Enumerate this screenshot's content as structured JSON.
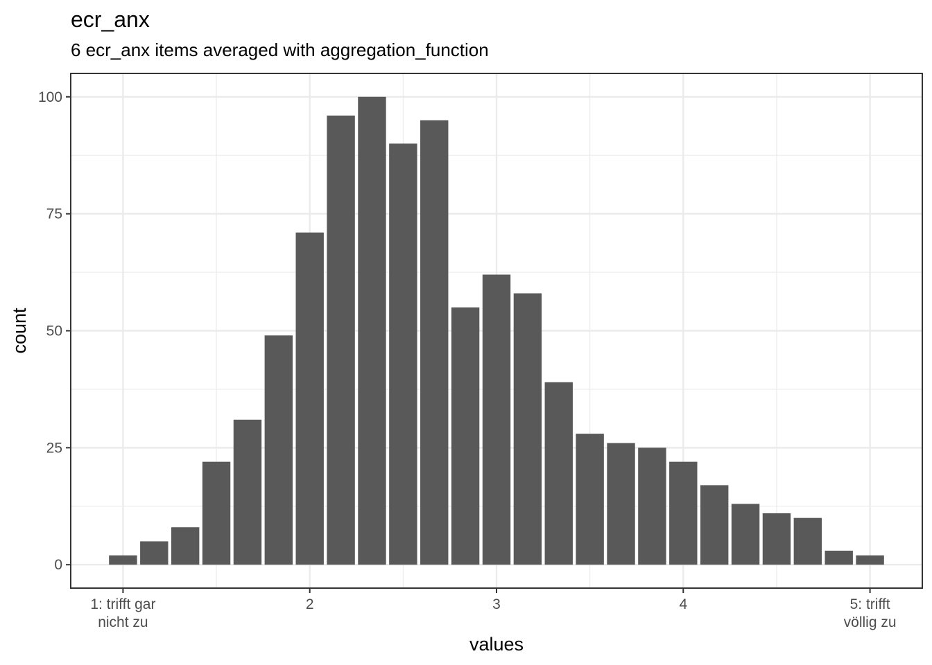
{
  "chart_data": {
    "type": "bar",
    "title": "ecr_anx",
    "subtitle": "6 ecr_anx items averaged with aggregation_function",
    "xlabel": "values",
    "ylabel": "count",
    "xlim": [
      0.72,
      5.28
    ],
    "ylim": [
      -5,
      105
    ],
    "x_ticks": [
      {
        "value": 1,
        "label": [
          "1: trifft gar",
          "nicht zu"
        ]
      },
      {
        "value": 2,
        "label": [
          "2"
        ]
      },
      {
        "value": 3,
        "label": [
          "3"
        ]
      },
      {
        "value": 4,
        "label": [
          "4"
        ]
      },
      {
        "value": 5,
        "label": [
          "5: trifft",
          "völlig zu"
        ]
      }
    ],
    "y_ticks": [
      0,
      25,
      50,
      75,
      100
    ],
    "bin_width": 0.1667,
    "x": [
      1.0,
      1.1667,
      1.3333,
      1.5,
      1.6667,
      1.8333,
      2.0,
      2.1667,
      2.3333,
      2.5,
      2.6667,
      2.8333,
      3.0,
      3.1667,
      3.3333,
      3.5,
      3.6667,
      3.8333,
      4.0,
      4.1667,
      4.3333,
      4.5,
      4.6667,
      4.8333,
      5.0
    ],
    "values": [
      2,
      5,
      8,
      22,
      31,
      49,
      71,
      96,
      100,
      90,
      95,
      55,
      62,
      58,
      39,
      28,
      26,
      25,
      22,
      17,
      13,
      11,
      10,
      3,
      2
    ],
    "bar_color": "#595959",
    "grid": true,
    "grid_color": "#ebebeb",
    "panel_border_color": "#333333"
  }
}
